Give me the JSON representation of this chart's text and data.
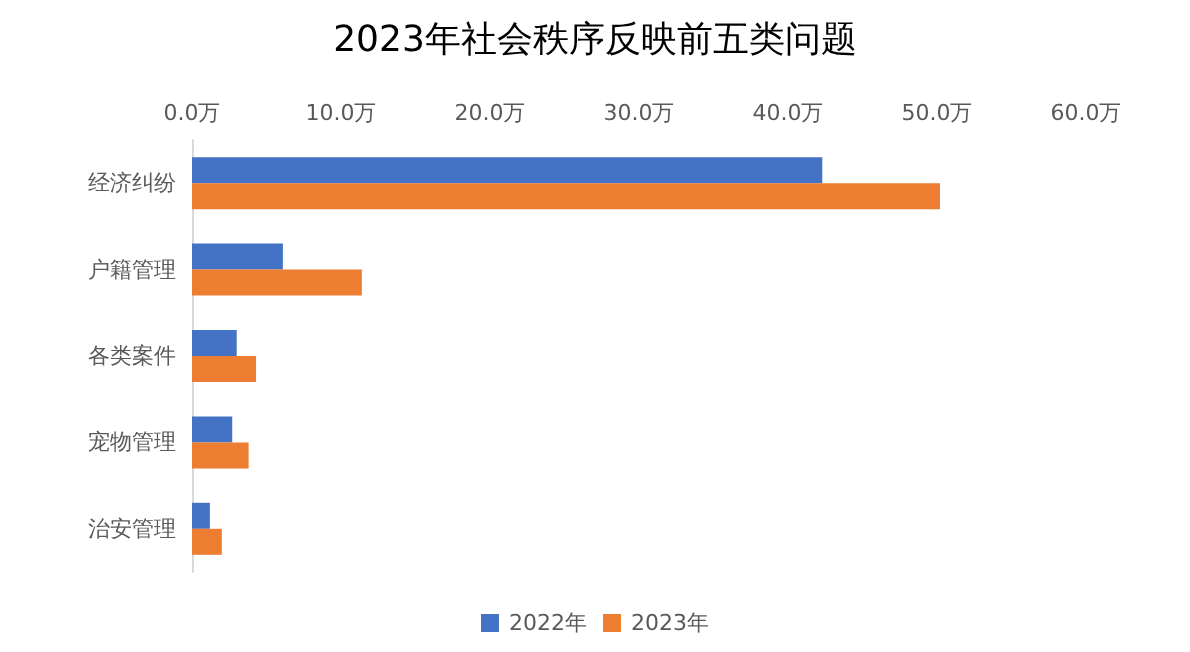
{
  "chart_data": {
    "type": "bar",
    "title": "2023年社会秩序反映前五类问题",
    "orientation": "horizontal",
    "categories": [
      "经济纠纷",
      "户籍管理",
      "各类案件",
      "宠物管理",
      "治安管理"
    ],
    "series": [
      {
        "name": "2022年",
        "color": "#4472c4",
        "values": [
          42.3,
          6.1,
          3.0,
          2.7,
          1.2
        ]
      },
      {
        "name": "2023年",
        "color": "#ed7d31",
        "values": [
          50.2,
          11.4,
          4.3,
          3.8,
          2.0
        ]
      }
    ],
    "xlim": [
      0,
      60
    ],
    "xticks": [
      {
        "value": 0,
        "label": "0.0万"
      },
      {
        "value": 10,
        "label": "10.0万"
      },
      {
        "value": 20,
        "label": "20.0万"
      },
      {
        "value": 30,
        "label": "30.0万"
      },
      {
        "value": 40,
        "label": "40.0万"
      },
      {
        "value": 50,
        "label": "50.0万"
      },
      {
        "value": 60,
        "label": "60.0万"
      }
    ],
    "grid": false,
    "legend": "bottom"
  }
}
